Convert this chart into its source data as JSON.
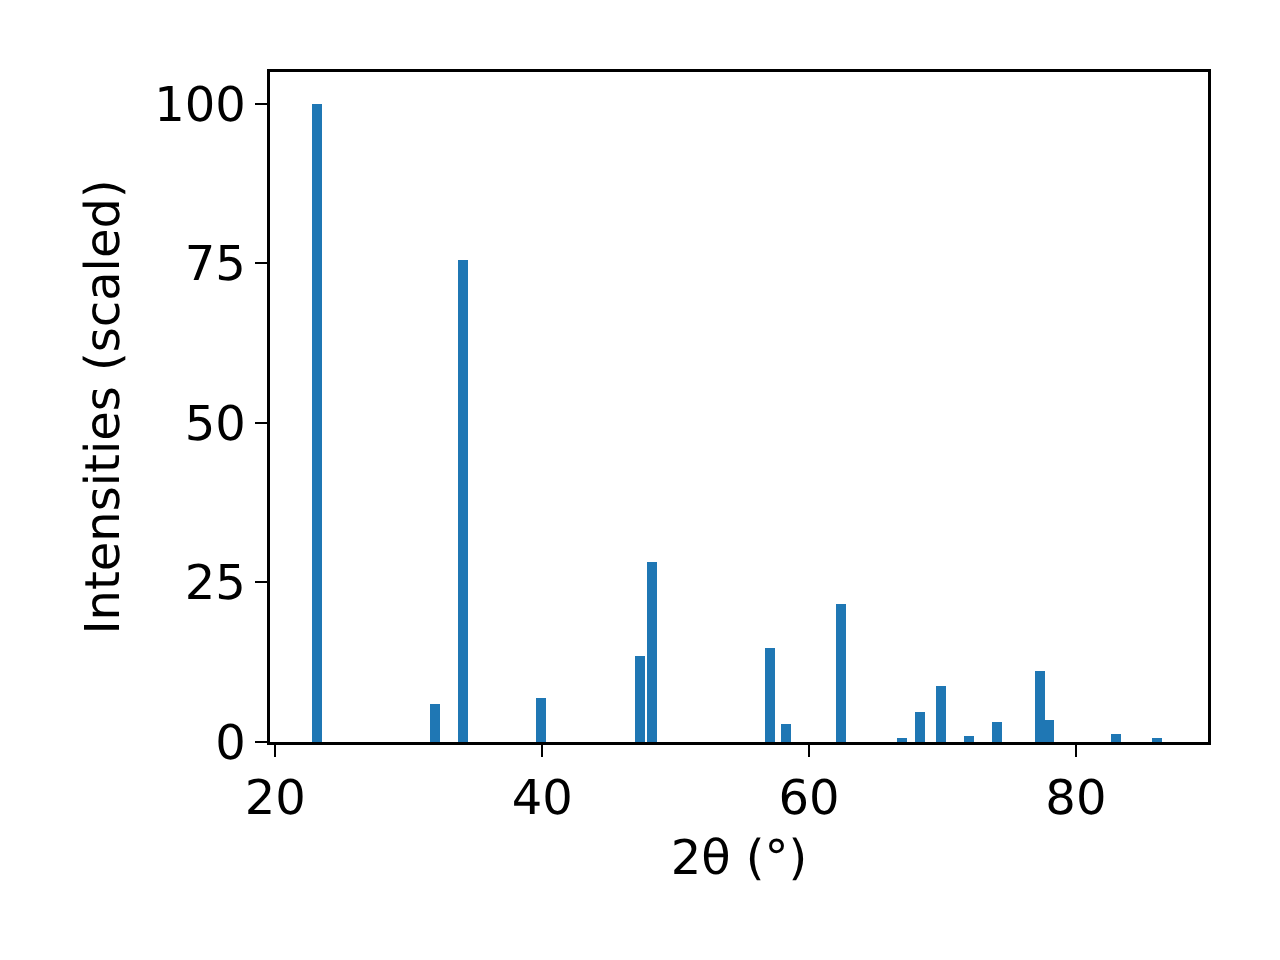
{
  "chart_data": {
    "type": "bar",
    "xlabel": "2θ (°)",
    "ylabel": "Intensities (scaled)",
    "x": [
      23.15,
      32.0,
      34.1,
      39.9,
      47.3,
      48.2,
      57.1,
      58.3,
      62.4,
      67.0,
      68.3,
      69.9,
      72.0,
      74.1,
      77.3,
      78.0,
      83.0,
      86.1
    ],
    "values": [
      100,
      6.0,
      75.6,
      6.9,
      13.5,
      28.2,
      14.7,
      2.8,
      21.7,
      0.6,
      4.7,
      8.8,
      0.9,
      3.1,
      11.2,
      3.4,
      1.3,
      0.6
    ],
    "color": "#1f77b4",
    "xlim": [
      19.6,
      89.9
    ],
    "xticks": [
      20,
      40,
      60,
      80
    ],
    "ylim": [
      0,
      105
    ],
    "yticks": [
      0,
      25,
      50,
      75,
      100
    ],
    "grid": false
  }
}
